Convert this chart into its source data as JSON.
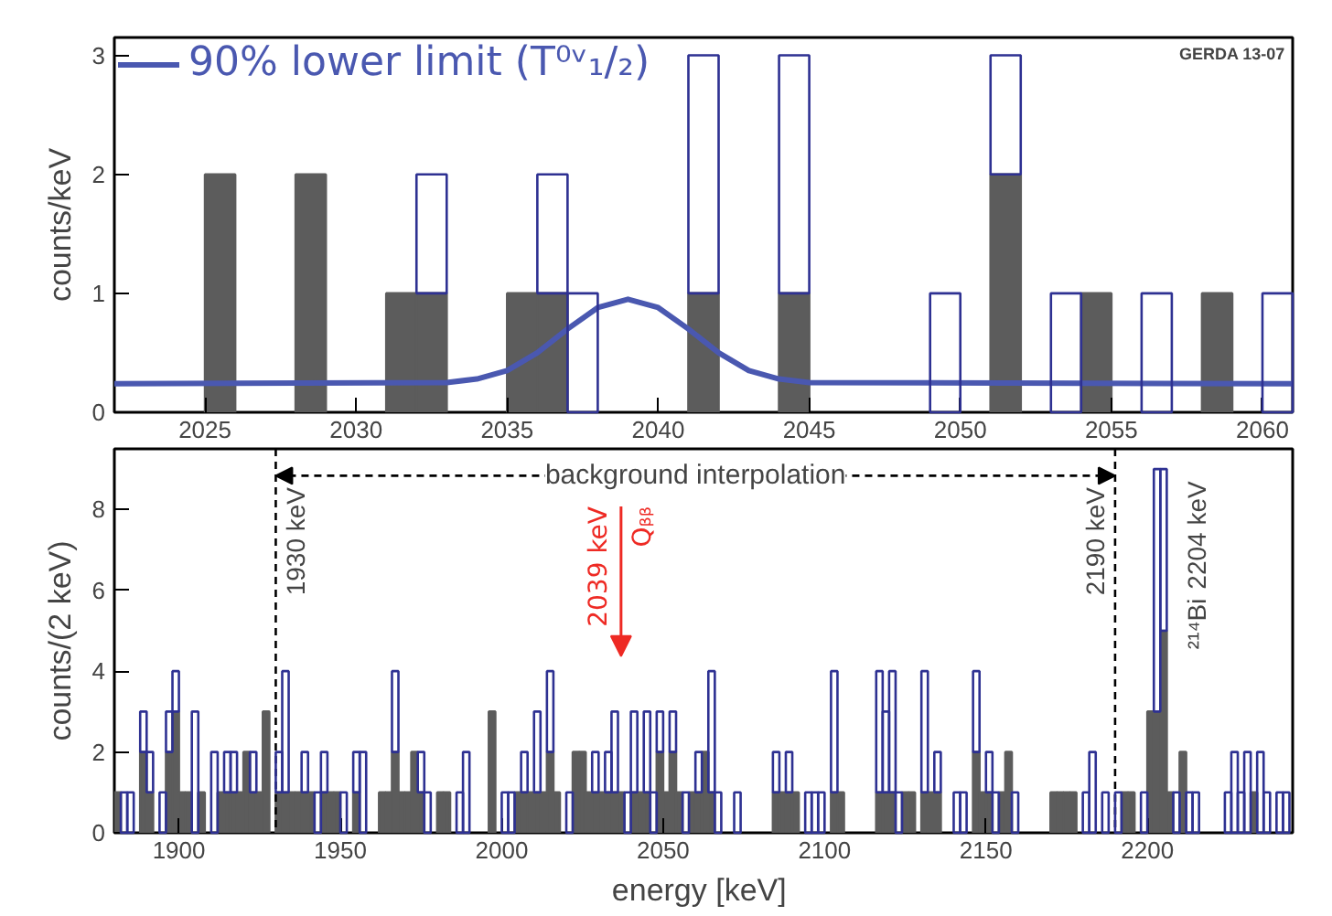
{
  "chart_data": [
    {
      "type": "bar",
      "ylabel": "counts/keV",
      "x": [
        2022.5,
        2023.5,
        2024.5,
        2025.5,
        2026.5,
        2027.5,
        2028.5,
        2029.5,
        2030.5,
        2031.5,
        2032.5,
        2033.5,
        2034.5,
        2035.5,
        2036.5,
        2037.5,
        2038.5,
        2039.5,
        2040.5,
        2041.5,
        2042.5,
        2043.5,
        2044.5,
        2045.5,
        2046.5,
        2047.5,
        2048.5,
        2049.5,
        2050.5,
        2051.5,
        2052.5,
        2053.5,
        2054.5,
        2055.5,
        2056.5,
        2057.5,
        2058.5,
        2059.5,
        2060.5
      ],
      "series": [
        {
          "color": "#5c5c5c",
          "values": [
            0,
            0,
            0,
            2,
            0,
            0,
            2,
            0,
            0,
            1,
            1,
            0,
            0,
            1,
            1,
            0,
            0,
            0,
            0,
            1,
            0,
            0,
            1,
            0,
            0,
            0,
            0,
            0,
            0,
            2,
            0,
            0,
            1,
            0,
            0,
            0,
            1,
            0,
            0
          ]
        },
        {
          "color": "#2e3192",
          "values": [
            0,
            0,
            0,
            0,
            0,
            0,
            0,
            0,
            0,
            0,
            1,
            0,
            0,
            0,
            1,
            1,
            0,
            0,
            0,
            2,
            0,
            0,
            2,
            0,
            0,
            0,
            0,
            1,
            0,
            1,
            0,
            1,
            0,
            0,
            1,
            0,
            0,
            0,
            1
          ]
        },
        {
          "type": "line",
          "name": "90% lower limit (T⁰ᵛ₁/₂)",
          "color": "#4a58b0",
          "x": [
            2022,
            2033,
            2034,
            2035,
            2036,
            2037,
            2038,
            2039,
            2040,
            2041,
            2042,
            2043,
            2044,
            2045,
            2061
          ],
          "values": [
            0.24,
            0.25,
            0.28,
            0.35,
            0.5,
            0.7,
            0.88,
            0.95,
            0.88,
            0.7,
            0.5,
            0.35,
            0.28,
            0.25,
            0.24
          ]
        }
      ],
      "stacked": true,
      "xlim": [
        2022,
        2061
      ],
      "ylim": [
        0,
        3.15
      ],
      "xticks": [
        2025,
        2030,
        2035,
        2040,
        2045,
        2050,
        2055,
        2060
      ],
      "yticks": [
        0,
        1,
        2,
        3
      ],
      "grid": false,
      "legend": "top left",
      "annotations": [
        "GERDA 13-07"
      ]
    },
    {
      "type": "bar",
      "ylabel": "counts/(2 keV)",
      "xlabel": "energy  [keV]",
      "x": [
        1881,
        1883,
        1885,
        1887,
        1889,
        1891,
        1893,
        1895,
        1897,
        1899,
        1901,
        1903,
        1905,
        1907,
        1909,
        1911,
        1913,
        1915,
        1917,
        1919,
        1921,
        1923,
        1925,
        1927,
        1929,
        1931,
        1933,
        1935,
        1937,
        1939,
        1941,
        1943,
        1945,
        1947,
        1949,
        1951,
        1953,
        1955,
        1957,
        1959,
        1961,
        1963,
        1965,
        1967,
        1969,
        1971,
        1973,
        1975,
        1977,
        1979,
        1981,
        1983,
        1985,
        1987,
        1989,
        1991,
        1993,
        1995,
        1997,
        1999,
        2001,
        2003,
        2005,
        2007,
        2009,
        2011,
        2013,
        2015,
        2017,
        2019,
        2021,
        2023,
        2025,
        2027,
        2029,
        2031,
        2033,
        2035,
        2037,
        2039,
        2041,
        2043,
        2045,
        2047,
        2049,
        2051,
        2053,
        2055,
        2057,
        2059,
        2061,
        2063,
        2065,
        2067,
        2069,
        2071,
        2073,
        2075,
        2077,
        2079,
        2081,
        2083,
        2085,
        2087,
        2089,
        2091,
        2093,
        2095,
        2097,
        2099,
        2101,
        2103,
        2105,
        2107,
        2109,
        2111,
        2113,
        2115,
        2117,
        2119,
        2121,
        2123,
        2125,
        2127,
        2129,
        2131,
        2133,
        2135,
        2137,
        2139,
        2141,
        2143,
        2145,
        2147,
        2149,
        2151,
        2153,
        2155,
        2157,
        2159,
        2161,
        2163,
        2165,
        2167,
        2169,
        2171,
        2173,
        2175,
        2177,
        2179,
        2181,
        2183,
        2185,
        2187,
        2189,
        2191,
        2193,
        2195,
        2197,
        2199,
        2201,
        2203,
        2205,
        2207,
        2209,
        2211,
        2213,
        2215,
        2217,
        2219,
        2221,
        2223,
        2225,
        2227,
        2229,
        2231,
        2233,
        2235,
        2237,
        2239,
        2241,
        2243
      ],
      "series": [
        {
          "color": "#5c5c5c",
          "values": [
            1,
            0,
            0,
            0,
            2,
            1,
            0,
            0,
            2,
            3,
            1,
            1,
            0,
            1,
            0,
            0,
            1,
            1,
            1,
            1,
            2,
            1,
            1,
            3,
            0,
            1,
            1,
            1,
            1,
            1,
            1,
            0,
            1,
            1,
            1,
            0,
            0,
            1,
            0,
            0,
            0,
            1,
            1,
            2,
            1,
            1,
            2,
            1,
            0,
            0,
            1,
            1,
            0,
            0,
            0,
            0,
            0,
            0,
            3,
            0,
            0,
            0,
            1,
            1,
            1,
            1,
            1,
            2,
            1,
            0,
            0,
            2,
            2,
            1,
            1,
            1,
            1,
            1,
            1,
            0,
            1,
            1,
            1,
            0,
            2,
            1,
            2,
            1,
            0,
            1,
            1,
            2,
            1,
            0,
            0,
            0,
            0,
            0,
            0,
            0,
            0,
            0,
            1,
            1,
            1,
            1,
            0,
            0,
            0,
            0,
            0,
            1,
            1,
            0,
            0,
            0,
            0,
            0,
            1,
            1,
            1,
            0,
            1,
            1,
            0,
            1,
            1,
            1,
            0,
            0,
            0,
            0,
            0,
            2,
            1,
            1,
            0,
            1,
            2,
            0,
            0,
            0,
            0,
            0,
            0,
            1,
            1,
            1,
            1,
            0,
            0,
            0,
            0,
            0,
            0,
            0,
            1,
            1,
            0,
            0,
            3,
            3,
            5,
            1,
            0,
            2,
            0,
            0,
            0,
            0,
            0,
            0,
            0,
            0,
            0,
            0,
            1,
            0,
            0,
            0,
            0,
            0
          ]
        },
        {
          "color": "#2e3192",
          "values": [
            0,
            1,
            1,
            0,
            1,
            1,
            0,
            1,
            1,
            1,
            0,
            0,
            3,
            0,
            0,
            2,
            0,
            1,
            1,
            0,
            0,
            1,
            0,
            0,
            0,
            1,
            3,
            0,
            0,
            1,
            0,
            1,
            1,
            0,
            0,
            1,
            0,
            1,
            2,
            0,
            0,
            0,
            0,
            2,
            0,
            0,
            0,
            1,
            1,
            0,
            0,
            0,
            0,
            1,
            2,
            0,
            0,
            0,
            0,
            0,
            1,
            1,
            0,
            1,
            0,
            2,
            0,
            2,
            0,
            0,
            1,
            0,
            0,
            0,
            1,
            0,
            1,
            2,
            0,
            1,
            2,
            0,
            2,
            1,
            1,
            0,
            1,
            0,
            1,
            0,
            1,
            0,
            3,
            1,
            0,
            0,
            1,
            0,
            0,
            0,
            0,
            0,
            1,
            0,
            1,
            0,
            0,
            1,
            1,
            1,
            0,
            3,
            0,
            0,
            0,
            0,
            0,
            0,
            3,
            2,
            3,
            1,
            0,
            0,
            0,
            3,
            0,
            1,
            0,
            0,
            1,
            1,
            0,
            2,
            0,
            1,
            1,
            0,
            0,
            1,
            0,
            0,
            0,
            0,
            0,
            0,
            0,
            0,
            0,
            0,
            1,
            2,
            0,
            1,
            0,
            1,
            0,
            0,
            0,
            1,
            0,
            6,
            4,
            0,
            1,
            0,
            1,
            1,
            0,
            0,
            0,
            0,
            1,
            2,
            1,
            2,
            0,
            2,
            1,
            0,
            1,
            1
          ]
        }
      ],
      "stacked": true,
      "xlim": [
        1880,
        2245
      ],
      "ylim": [
        0,
        9.5
      ],
      "xticks": [
        1900,
        1950,
        2000,
        2050,
        2100,
        2150,
        2200
      ],
      "yticks": [
        0,
        2,
        4,
        6,
        8
      ],
      "grid": false,
      "ref_lines": [
        {
          "axis": "x",
          "value": 1930,
          "label": "1930 keV",
          "line_style": "dashed"
        },
        {
          "axis": "x",
          "value": 2190,
          "label": "2190 keV",
          "line_style": "dashed"
        }
      ],
      "annotations": [
        "background interpolation",
        "2039 keV",
        "Qᵦᵦ",
        {
          "text": "2204 keV",
          "x": 2204,
          "y": 8.7
        },
        {
          "text": "²¹⁴Bi",
          "x": 2204,
          "y": 5.8
        }
      ]
    }
  ]
}
